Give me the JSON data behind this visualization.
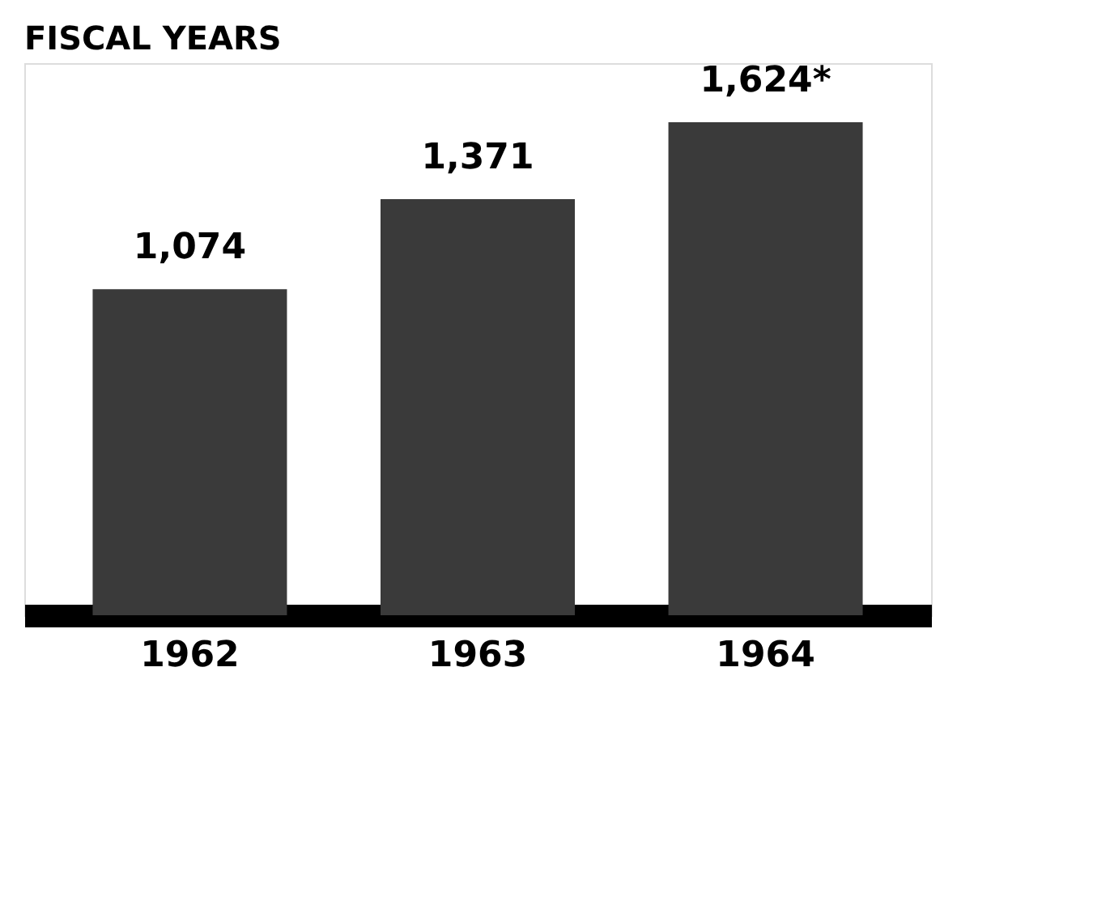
{
  "chart_data": {
    "type": "bar",
    "title": "FISCAL YEARS",
    "categories": [
      "1962",
      "1963",
      "1964"
    ],
    "values": [
      1074,
      1371,
      1624
    ],
    "value_labels": [
      "1,074",
      "1,371",
      "1,624*"
    ],
    "color": "#3a3a3a"
  }
}
